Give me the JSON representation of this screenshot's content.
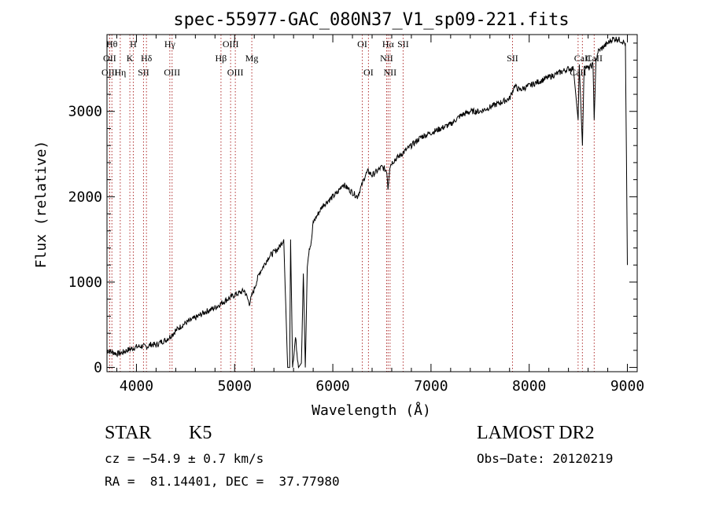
{
  "chart_data": {
    "type": "line",
    "title": "spec-55977-GAC_080N37_V1_sp09-221.fits",
    "xlabel": "Wavelength (Å)",
    "ylabel": "Flux (relative)",
    "xlim": [
      3700,
      9100
    ],
    "ylim": [
      -50,
      3900
    ],
    "xticks": [
      4000,
      5000,
      6000,
      7000,
      8000,
      9000
    ],
    "yticks": [
      0,
      1000,
      2000,
      3000
    ],
    "line_color": "#000000",
    "marker_color": "#b03030",
    "series": [
      {
        "x": [
          3700,
          3750,
          3800,
          3850,
          3900,
          3950,
          4000,
          4050,
          4100,
          4150,
          4200,
          4250,
          4300,
          4350,
          4400,
          4450,
          4500,
          4600,
          4700,
          4800,
          4900,
          5000,
          5100,
          5150,
          5200,
          5250,
          5300,
          5350,
          5400,
          5450,
          5500,
          5540,
          5560,
          5570,
          5590,
          5620,
          5650,
          5680,
          5700,
          5720,
          5740,
          5760,
          5780,
          5800,
          5850,
          5900,
          5950,
          6000,
          6050,
          6100,
          6150,
          6200,
          6250,
          6300,
          6330,
          6360,
          6400,
          6450,
          6500,
          6550,
          6562,
          6580,
          6600,
          6650,
          6700,
          6800,
          6900,
          7000,
          7100,
          7200,
          7300,
          7400,
          7500,
          7600,
          7700,
          7800,
          7850,
          7900,
          8000,
          8100,
          8200,
          8300,
          8400,
          8450,
          8498,
          8510,
          8542,
          8560,
          8600,
          8650,
          8662,
          8680,
          8700,
          8750,
          8800,
          8850,
          8900,
          8950,
          8980,
          9000
        ],
        "y": [
          200,
          180,
          160,
          170,
          200,
          220,
          240,
          250,
          240,
          270,
          260,
          300,
          320,
          370,
          430,
          480,
          520,
          580,
          650,
          700,
          780,
          850,
          900,
          750,
          920,
          1100,
          1200,
          1300,
          1350,
          1400,
          1500,
          0,
          0,
          1500,
          0,
          350,
          0,
          50,
          1100,
          0,
          1200,
          1400,
          1450,
          1700,
          1800,
          1900,
          1950,
          2000,
          2050,
          2150,
          2100,
          2050,
          2000,
          2150,
          2250,
          2300,
          2250,
          2300,
          2350,
          2300,
          2100,
          2350,
          2400,
          2450,
          2500,
          2600,
          2700,
          2750,
          2800,
          2850,
          2950,
          3000,
          3000,
          3050,
          3100,
          3150,
          3300,
          3250,
          3300,
          3350,
          3400,
          3450,
          3500,
          3500,
          2900,
          3550,
          2600,
          3550,
          3500,
          3550,
          2900,
          3600,
          3700,
          3750,
          3800,
          3850,
          3850,
          3820,
          3800,
          1200
        ]
      }
    ],
    "lines": [
      {
        "wl": 3750,
        "label": "Hθ",
        "row": 0
      },
      {
        "wl": 3727,
        "label": "OII",
        "row": 1
      },
      {
        "wl": 3727,
        "label": "OIII",
        "row": 2
      },
      {
        "wl": 3835,
        "label": "Hη",
        "row": 2
      },
      {
        "wl": 3933,
        "label": "K",
        "row": 1
      },
      {
        "wl": 3968,
        "label": "H",
        "row": 0
      },
      {
        "wl": 4072,
        "label": "SII",
        "row": 2
      },
      {
        "wl": 4102,
        "label": "Hδ",
        "row": 1
      },
      {
        "wl": 4340,
        "label": "Hγ",
        "row": 0
      },
      {
        "wl": 4363,
        "label": "OIII",
        "row": 2
      },
      {
        "wl": 4861,
        "label": "Hβ",
        "row": 1
      },
      {
        "wl": 4959,
        "label": "OIII",
        "row": 0
      },
      {
        "wl": 5007,
        "label": "OIII",
        "row": 2
      },
      {
        "wl": 5175,
        "label": "Mg",
        "row": 1
      },
      {
        "wl": 6300,
        "label": "OI",
        "row": 0
      },
      {
        "wl": 6363,
        "label": "OI",
        "row": 2
      },
      {
        "wl": 6548,
        "label": "NII",
        "row": 1
      },
      {
        "wl": 6563,
        "label": "Hα",
        "row": 0
      },
      {
        "wl": 6583,
        "label": "NII",
        "row": 2
      },
      {
        "wl": 6716,
        "label": "SII",
        "row": 0
      },
      {
        "wl": 7830,
        "label": "SII",
        "row": 1
      },
      {
        "wl": 8498,
        "label": "CaII",
        "row": 2
      },
      {
        "wl": 8542,
        "label": "CaII",
        "row": 1
      },
      {
        "wl": 8662,
        "label": "CaII",
        "row": 1
      }
    ]
  },
  "info": {
    "class": "STAR",
    "subclass": "K5",
    "survey": "LAMOST DR2",
    "cz": "cz = −54.9 ± 0.7 km/s",
    "obs_date": "Obs−Date: 20120219",
    "radec": "RA =  81.14401, DEC =  37.77980"
  }
}
